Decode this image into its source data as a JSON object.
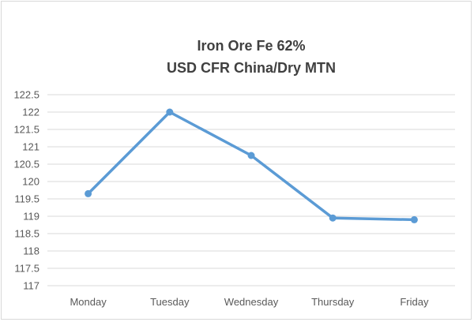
{
  "chart_data": {
    "type": "line",
    "title_lines": [
      "Iron Ore Fe 62%",
      "USD CFR China/Dry MTN"
    ],
    "categories": [
      "Monday",
      "Tuesday",
      "Wednesday",
      "Thursday",
      "Friday"
    ],
    "series": [
      {
        "values": [
          119.65,
          122.0,
          120.75,
          118.95,
          118.9
        ],
        "color": "#5b9bd5"
      }
    ],
    "yticks": [
      "117",
      "117.5",
      "118",
      "118.5",
      "119",
      "119.5",
      "120",
      "120.5",
      "121",
      "121.5",
      "122",
      "122.5"
    ],
    "ylim": [
      117,
      122.5
    ],
    "grid": true,
    "legend": "none",
    "xlabel": "",
    "ylabel": ""
  }
}
